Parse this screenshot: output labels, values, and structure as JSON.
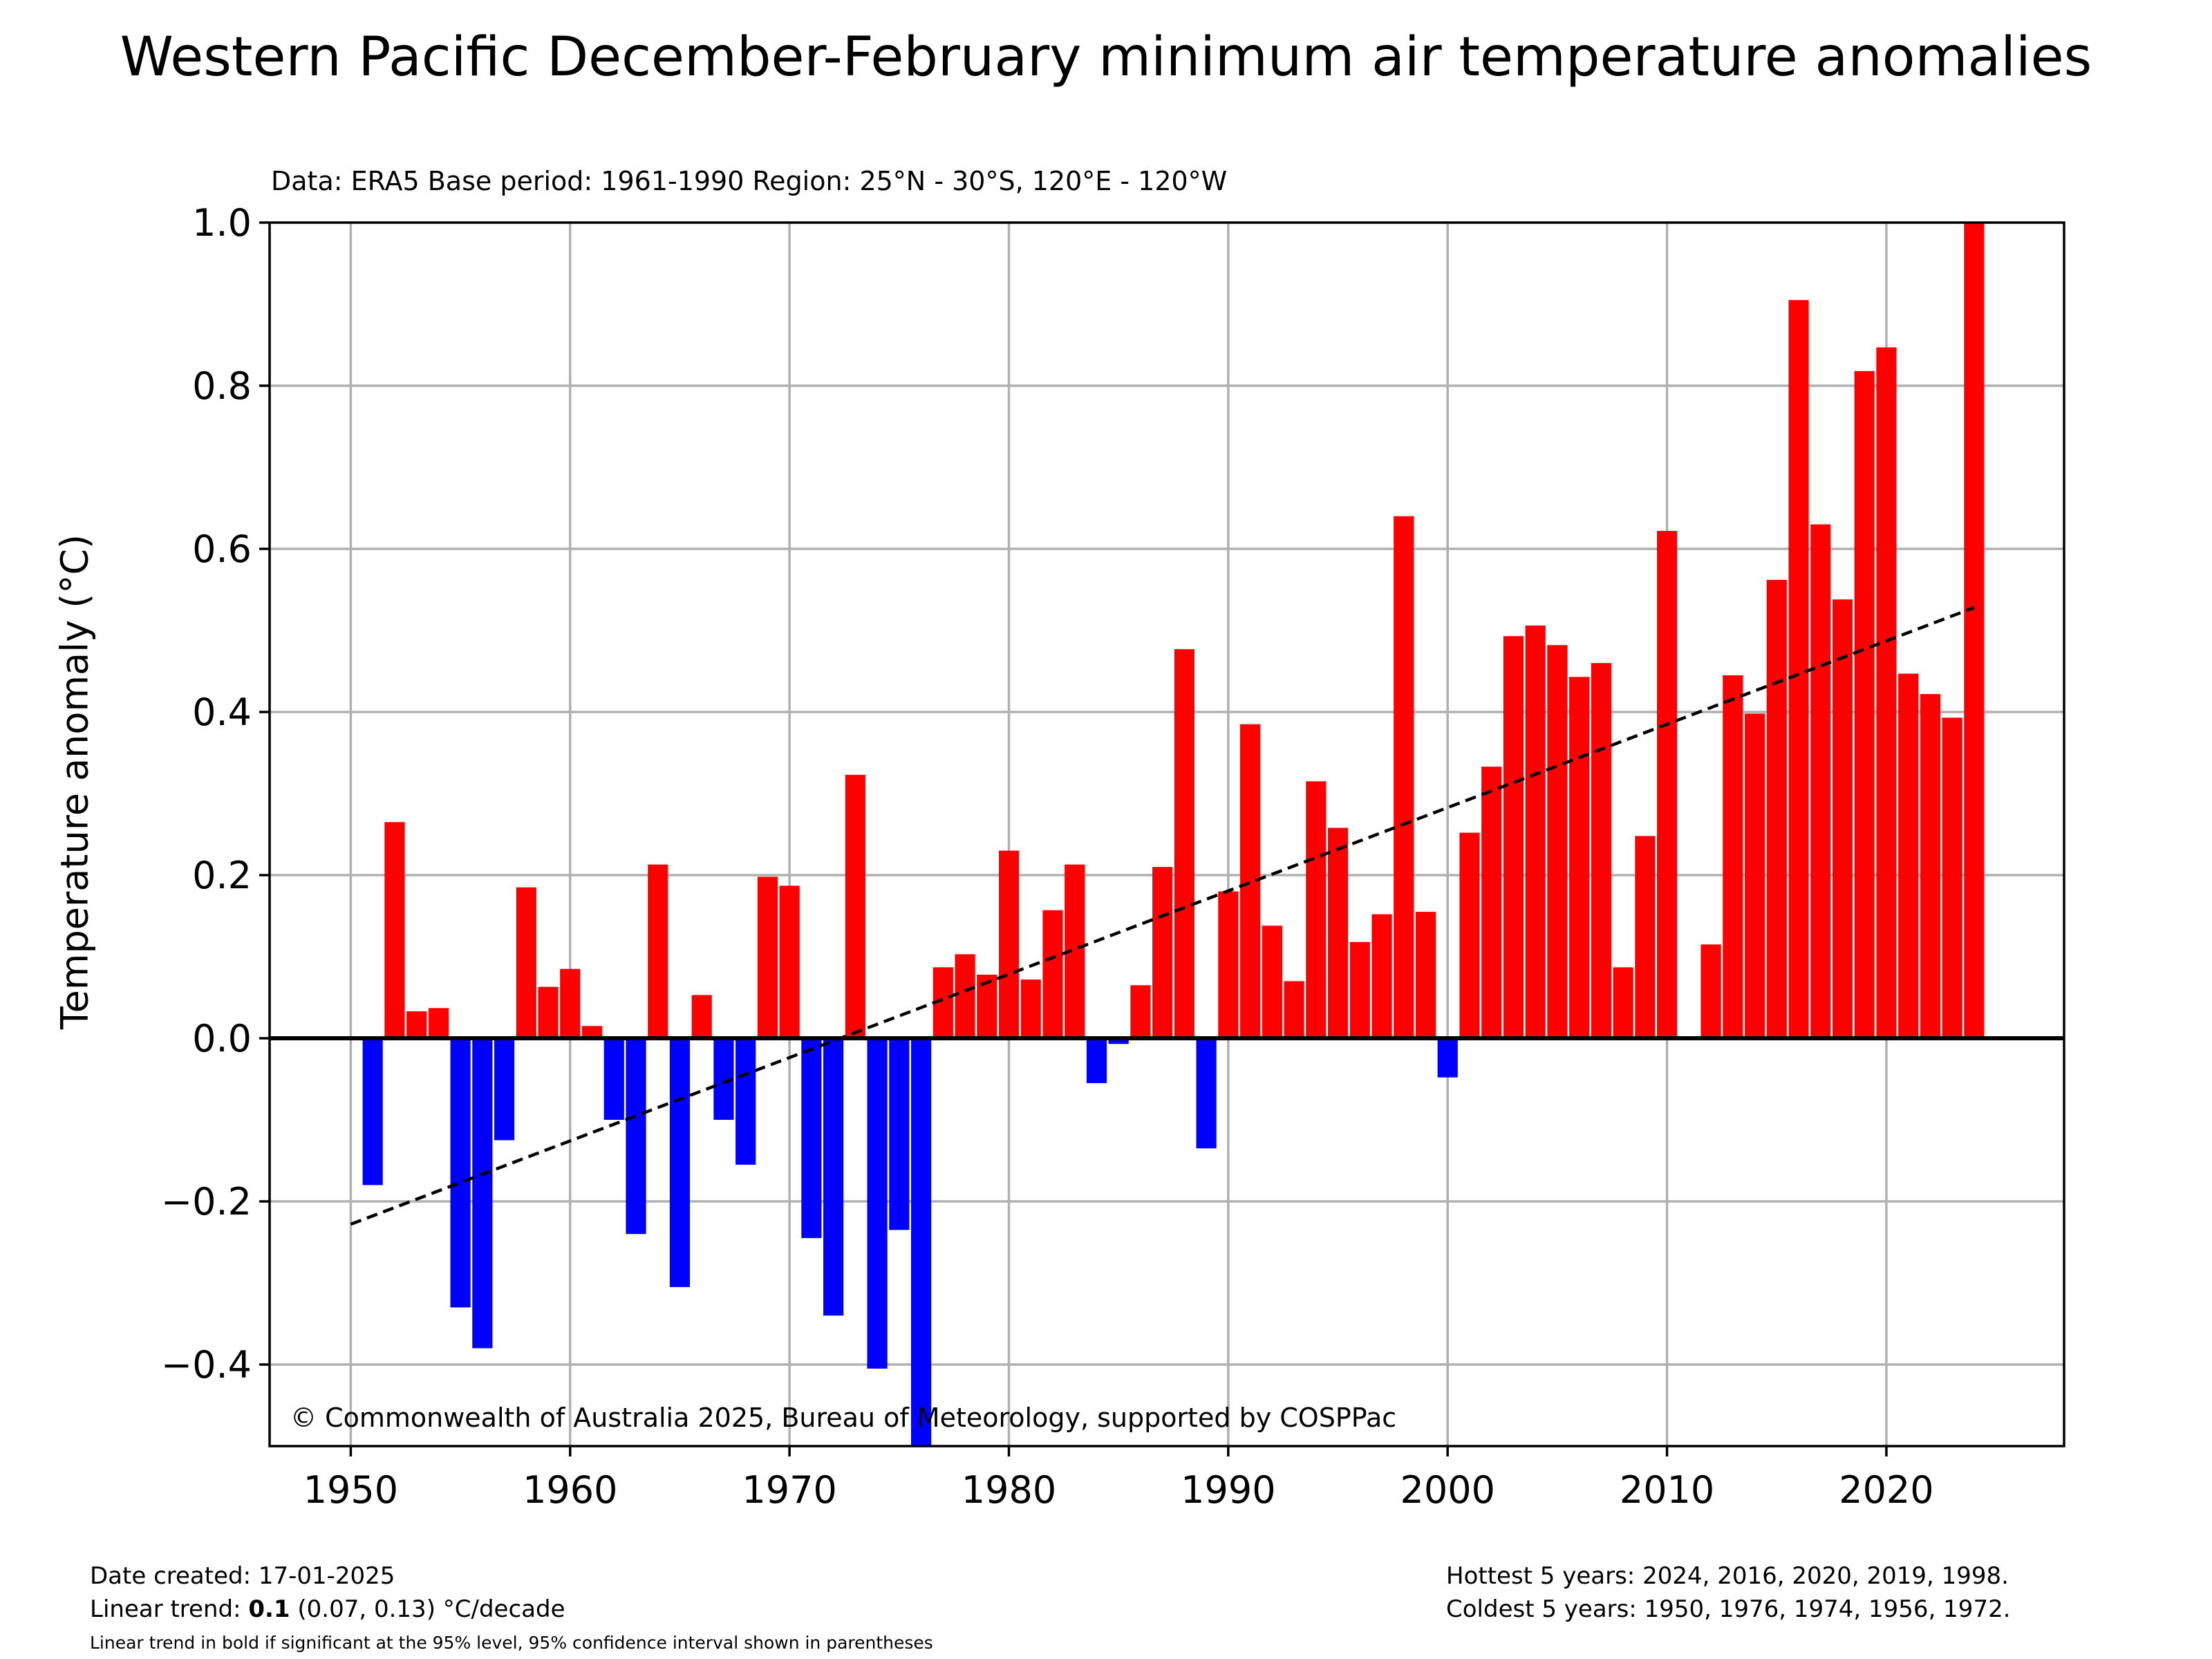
{
  "chart_data": {
    "type": "bar",
    "title": "Western Pacific December-February minimum air temperature anomalies",
    "subtitle": "Data: ERA5  Base period: 1961-1990  Region: 25°N - 30°S, 120°E - 120°W",
    "ylabel": "Temperature anomaly (°C)",
    "xlabel": "",
    "xlim": [
      1946.3,
      2028.1
    ],
    "ylim": [
      -0.5,
      1.0
    ],
    "x_ticks": [
      1950,
      1960,
      1970,
      1980,
      1990,
      2000,
      2010,
      2020
    ],
    "y_ticks": [
      1.0,
      0.8,
      0.6,
      0.4,
      0.2,
      0.0,
      -0.2,
      -0.4
    ],
    "y_tick_labels": [
      "1.0",
      "0.8",
      "0.6",
      "0.4",
      "0.2",
      "0.0",
      "−0.2",
      "−0.4"
    ],
    "grid": true,
    "positive_color": "#ff0000",
    "negative_color": "#0000ff",
    "x": [
      1951,
      1952,
      1953,
      1954,
      1955,
      1956,
      1957,
      1958,
      1959,
      1960,
      1961,
      1962,
      1963,
      1964,
      1965,
      1966,
      1967,
      1968,
      1969,
      1970,
      1971,
      1972,
      1973,
      1974,
      1975,
      1976,
      1977,
      1978,
      1979,
      1980,
      1981,
      1982,
      1983,
      1984,
      1985,
      1986,
      1987,
      1988,
      1989,
      1990,
      1991,
      1992,
      1993,
      1994,
      1995,
      1996,
      1997,
      1998,
      1999,
      2000,
      2001,
      2002,
      2003,
      2004,
      2005,
      2006,
      2007,
      2008,
      2009,
      2010,
      2011,
      2012,
      2013,
      2014,
      2015,
      2016,
      2017,
      2018,
      2019,
      2020,
      2021,
      2022,
      2023,
      2024
    ],
    "values": [
      -0.18,
      0.265,
      0.033,
      0.037,
      -0.33,
      -0.38,
      -0.125,
      0.185,
      0.063,
      0.085,
      0.015,
      -0.1,
      -0.24,
      0.213,
      -0.305,
      0.053,
      -0.1,
      -0.155,
      0.198,
      0.187,
      -0.245,
      -0.34,
      0.323,
      -0.405,
      -0.235,
      -0.5,
      0.087,
      0.103,
      0.078,
      0.23,
      0.072,
      0.157,
      0.213,
      -0.055,
      -0.007,
      0.065,
      0.21,
      0.477,
      -0.135,
      0.18,
      0.385,
      0.138,
      0.07,
      0.315,
      0.258,
      0.118,
      0.152,
      0.64,
      0.155,
      -0.048,
      0.252,
      0.333,
      0.493,
      0.506,
      0.482,
      0.443,
      0.46,
      0.087,
      0.248,
      0.622,
      0.0,
      0.115,
      0.445,
      0.398,
      0.562,
      0.905,
      0.63,
      0.538,
      0.818,
      0.847,
      0.447,
      0.422,
      0.393,
      1.0
    ],
    "trend_line": {
      "x": [
        1950,
        2024
      ],
      "y": [
        -0.228,
        0.528
      ],
      "style": "dashed"
    },
    "annotation": "© Commonwealth of Australia 2025, Bureau of Meteorology, supported by COSPPac"
  },
  "footer": {
    "date_created": "Date created: 17-01-2025",
    "trend_prefix": "Linear trend: ",
    "trend_value": "0.1",
    "trend_suffix": " (0.07, 0.13) °C/decade",
    "trend_note": "Linear trend in bold if significant at the 95% level, 95% confidence interval shown in parentheses",
    "hottest": "Hottest 5 years: 2024, 2016, 2020, 2019, 1998.",
    "coldest": "Coldest 5 years: 1950, 1976, 1974, 1956, 1972."
  }
}
